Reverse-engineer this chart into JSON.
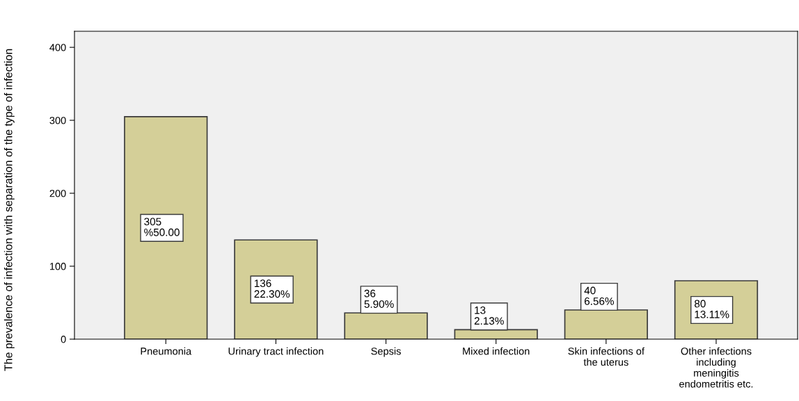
{
  "chart_data": {
    "type": "bar",
    "ylabel": "The prevalence of infection with separation of the type of infection",
    "categories": [
      "Pneumonia",
      "Urinary tract infection",
      "Sepsis",
      "Mixed infection",
      "Skin infections of\nthe uterus",
      "Other infections\nincluding\nmeningitis\nendometritis etc."
    ],
    "values": [
      305,
      136,
      36,
      13,
      40,
      80
    ],
    "value_labels": [
      "305\n%50.00",
      "136\n22.30%",
      "36\n5.90%",
      "13\n2.13%",
      "40\n6.56%",
      "80\n13.11%"
    ],
    "color": "#d4cf98",
    "ylim": [
      0,
      422
    ],
    "yticks": [
      0,
      100,
      200,
      300,
      400
    ],
    "grid": false
  }
}
